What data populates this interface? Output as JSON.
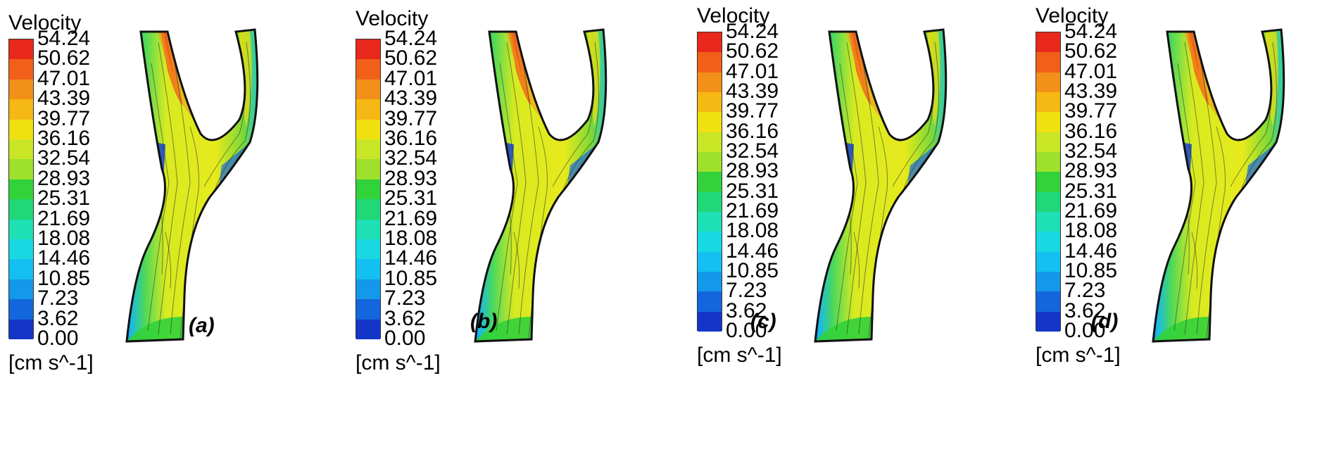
{
  "figure": {
    "legend": {
      "title": "Velocity",
      "unit": "[cm s^-1]",
      "ticks": [
        "54.24",
        "50.62",
        "47.01",
        "43.39",
        "39.77",
        "36.16",
        "32.54",
        "28.93",
        "25.31",
        "21.69",
        "18.08",
        "14.46",
        "10.85",
        "7.23",
        "3.62",
        "0.00"
      ],
      "colors": [
        "#e8281a",
        "#f06018",
        "#f3901a",
        "#f5b814",
        "#f0e010",
        "#c8e626",
        "#9ee02c",
        "#32d23a",
        "#20d878",
        "#1ee0b4",
        "#18d8e2",
        "#14c0f2",
        "#1498ea",
        "#1466dc",
        "#1436c8"
      ]
    },
    "panels": [
      {
        "label": "(a)"
      },
      {
        "label": "(b)"
      },
      {
        "label": "(c)"
      },
      {
        "label": "(d)"
      }
    ]
  }
}
